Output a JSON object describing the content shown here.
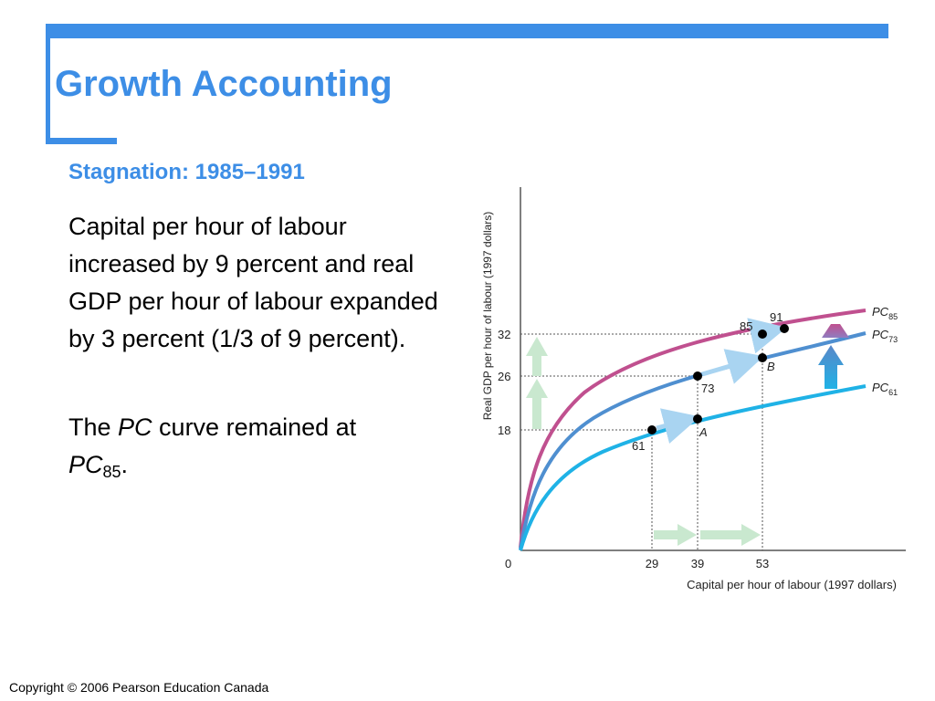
{
  "slide": {
    "title": "Growth Accounting",
    "subtitle": "Stagnation: 1985–1991",
    "paragraph1": "Capital per hour of labour increased by 9 percent and real GDP per hour of labour expanded by 3 percent (1/3 of 9 percent).",
    "paragraph2": {
      "before": "The ",
      "pc_italic": "PC",
      "middle": " curve remained at",
      "pc_italic_2": "PC",
      "subscript": "85",
      "after": "."
    },
    "copyright": "Copyright © 2006 Pearson Education Canada"
  },
  "colors": {
    "accent": "#3d8ee6",
    "text": "#000000",
    "pc85": "#c0508f",
    "pc73": "#4f8fd0",
    "pc61": "#1fb2e6",
    "green_arrow": "#c9e8cf",
    "gridline": "#555555"
  },
  "diagram": {
    "y_axis_label": "Real GDP per hour of labour (1997 dollars)",
    "x_axis_label": "Capital per hour of labour (1997 dollars)",
    "origin_label": "0",
    "x_ticks": [
      "29",
      "39",
      "53"
    ],
    "y_ticks": [
      "18",
      "26",
      "32"
    ],
    "curves": [
      {
        "name": "PC",
        "sub": "85"
      },
      {
        "name": "PC",
        "sub": "73"
      },
      {
        "name": "PC",
        "sub": "61"
      }
    ],
    "point_labels": [
      "61",
      "73",
      "85",
      "91",
      "A",
      "B"
    ]
  }
}
